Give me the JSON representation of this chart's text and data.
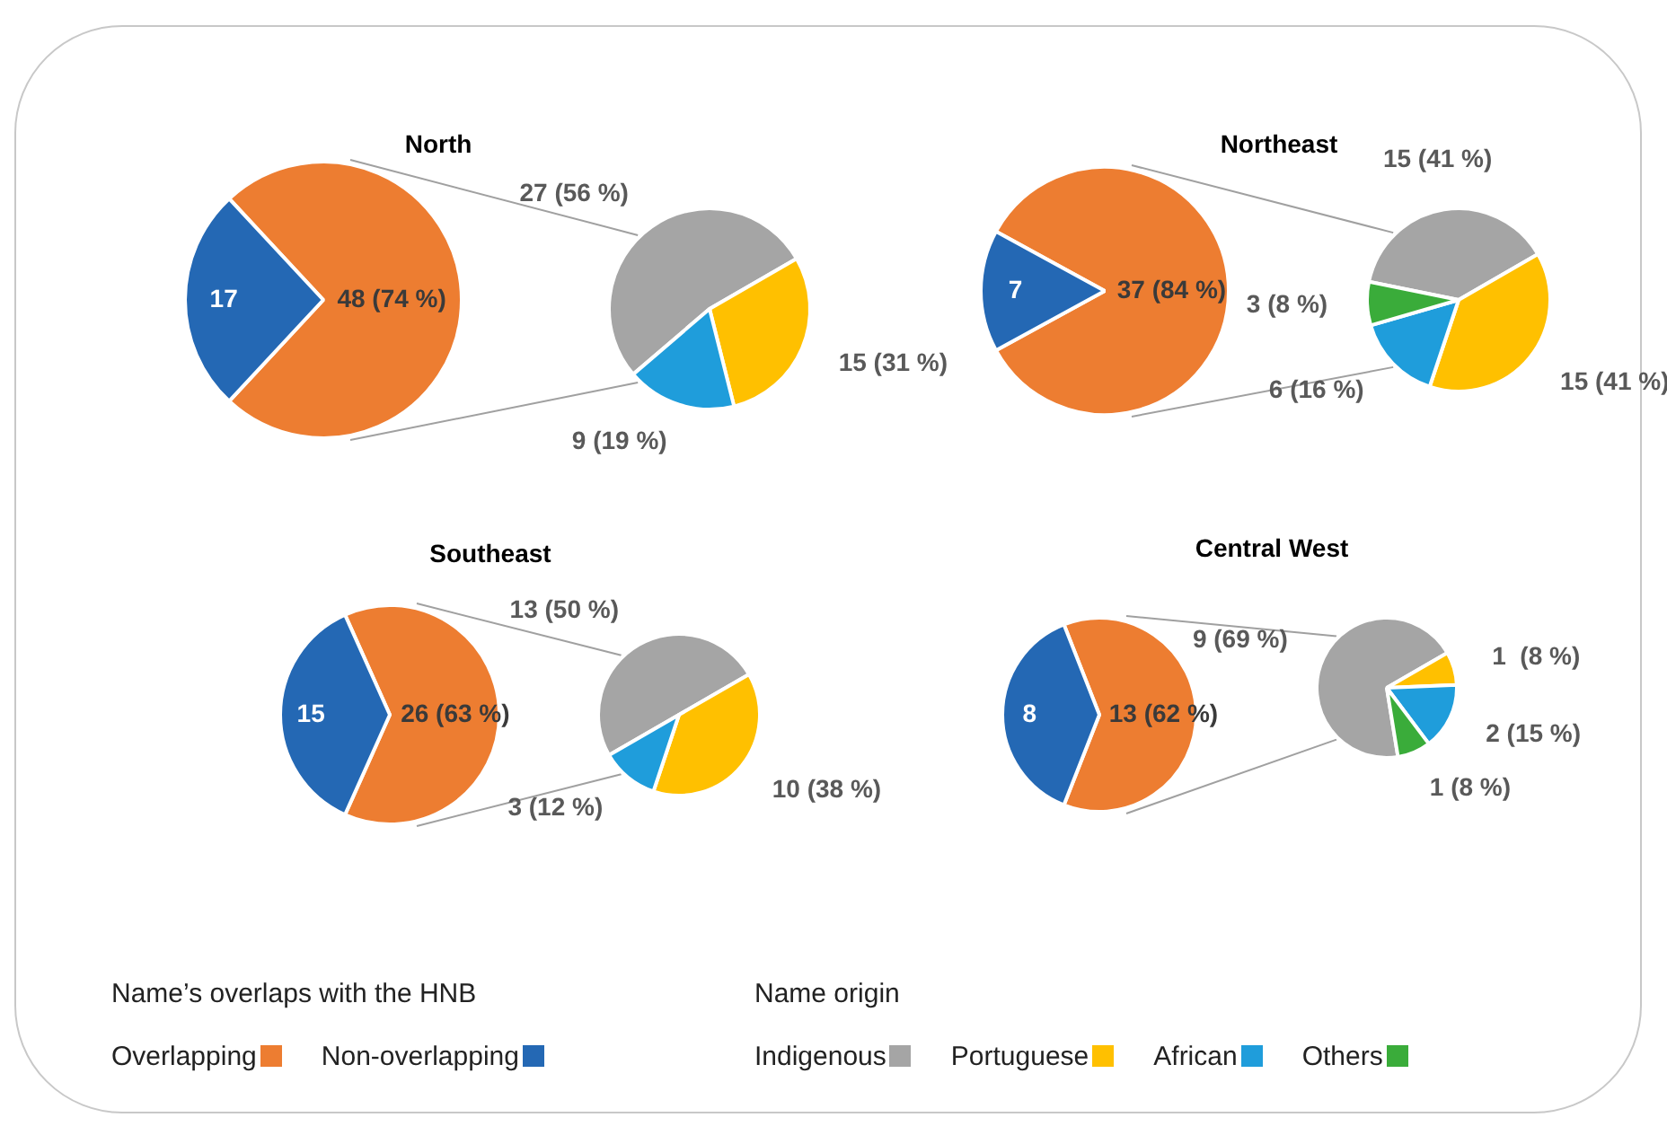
{
  "chart_data": [
    {
      "type": "pie",
      "title": "North",
      "categories": [
        "Overlapping",
        "Non-overlapping"
      ],
      "values": [
        48,
        17
      ],
      "colors": [
        "#ed7d31",
        "#2468b4"
      ],
      "value_labels": [
        "48 (74 %)",
        "17"
      ],
      "legend": "bottom",
      "legend_title": "Name’s overlaps with the HNB"
    },
    {
      "type": "pie",
      "categories": [
        null,
        null,
        null
      ],
      "values": [
        27,
        15,
        9
      ],
      "colors": [
        "#a5a5a5",
        "#ffc000",
        "#1f9ddb"
      ],
      "value_labels": [
        "27 (56 %)",
        "15 (31 %)",
        "9 (19 %)"
      ]
    },
    {
      "type": "pie",
      "title": "Northeast",
      "categories": [
        null,
        null
      ],
      "values": [
        37,
        7
      ],
      "colors": [
        "#ed7d31",
        "#2468b4"
      ],
      "value_labels": [
        "37 (84 %)",
        "7"
      ]
    },
    {
      "type": "pie",
      "categories": [
        "Indigenous",
        "Portuguese",
        "African",
        "Others"
      ],
      "values": [
        15,
        15,
        6,
        3
      ],
      "colors": [
        "#a5a5a5",
        "#ffc000",
        "#1f9ddb",
        "#3aac3a"
      ],
      "value_labels": [
        "15 (41 %)",
        "15 (41 %)",
        "6 (16 %)",
        "3 (8 %)"
      ],
      "legend": "bottom",
      "legend_title": "Name origin"
    },
    {
      "type": "pie",
      "title": "Southeast",
      "categories": [
        null,
        null
      ],
      "values": [
        26,
        15
      ],
      "colors": [
        "#ed7d31",
        "#2468b4"
      ],
      "value_labels": [
        "26 (63 %)",
        "15"
      ]
    },
    {
      "type": "pie",
      "categories": [
        null,
        null,
        null
      ],
      "values": [
        13,
        10,
        3
      ],
      "colors": [
        "#a5a5a5",
        "#ffc000",
        "#1f9ddb"
      ],
      "value_labels": [
        "13 (50 %)",
        "10 (38 %)",
        "3 (12 %)"
      ]
    },
    {
      "type": "pie",
      "title": "Central West",
      "categories": [
        null,
        null
      ],
      "values": [
        13,
        8
      ],
      "colors": [
        "#ed7d31",
        "#2468b4"
      ],
      "value_labels": [
        "13 (62 %)",
        "8"
      ]
    },
    {
      "type": "pie",
      "categories": [
        null,
        null,
        null,
        null
      ],
      "values": [
        9,
        1,
        2,
        1
      ],
      "colors": [
        "#a5a5a5",
        "#ffc000",
        "#1f9ddb",
        "#3aac3a"
      ],
      "value_labels": [
        "9 (69 %)",
        "1  (8 %)",
        "2 (15 %)",
        "1 (8 %)"
      ]
    }
  ]
}
